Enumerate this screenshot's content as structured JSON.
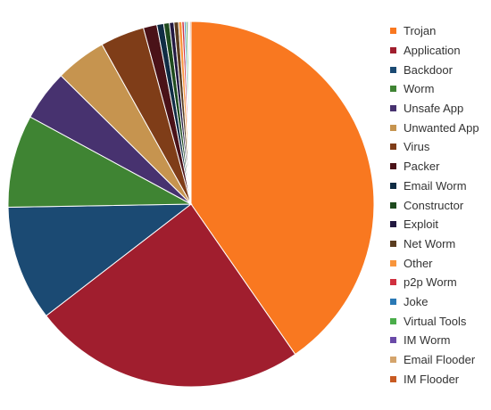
{
  "chart_data": {
    "type": "pie",
    "title": "",
    "legend_position": "right",
    "slices": [
      {
        "label": "Trojan",
        "value": 40.4,
        "color": "#f97820"
      },
      {
        "label": "Application",
        "value": 24.2,
        "color": "#a01e2e"
      },
      {
        "label": "Backdoor",
        "value": 10.2,
        "color": "#1b4a73"
      },
      {
        "label": "Worm",
        "value": 8.2,
        "color": "#3f8433"
      },
      {
        "label": "Unsafe App",
        "value": 4.5,
        "color": "#47326f"
      },
      {
        "label": "Unwanted App",
        "value": 4.5,
        "color": "#c6944f"
      },
      {
        "label": "Virus",
        "value": 3.9,
        "color": "#7f3d18"
      },
      {
        "label": "Packer",
        "value": 1.2,
        "color": "#4a1218"
      },
      {
        "label": "Email Worm",
        "value": 0.6,
        "color": "#0f2c44"
      },
      {
        "label": "Constructor",
        "value": 0.5,
        "color": "#1e4a1e"
      },
      {
        "label": "Exploit",
        "value": 0.4,
        "color": "#221840"
      },
      {
        "label": "Net Worm",
        "value": 0.4,
        "color": "#5a3d20"
      },
      {
        "label": "Other",
        "value": 0.3,
        "color": "#f8953c"
      },
      {
        "label": "p2p Worm",
        "value": 0.2,
        "color": "#d0303f"
      },
      {
        "label": "Joke",
        "value": 0.15,
        "color": "#2a79b5"
      },
      {
        "label": "Virtual Tools",
        "value": 0.15,
        "color": "#4aad4a"
      },
      {
        "label": "IM Worm",
        "value": 0.1,
        "color": "#6a4aa8"
      },
      {
        "label": "Email Flooder",
        "value": 0.1,
        "color": "#d4a46c"
      },
      {
        "label": "IM Flooder",
        "value": 0.1,
        "color": "#c85a22"
      }
    ]
  }
}
